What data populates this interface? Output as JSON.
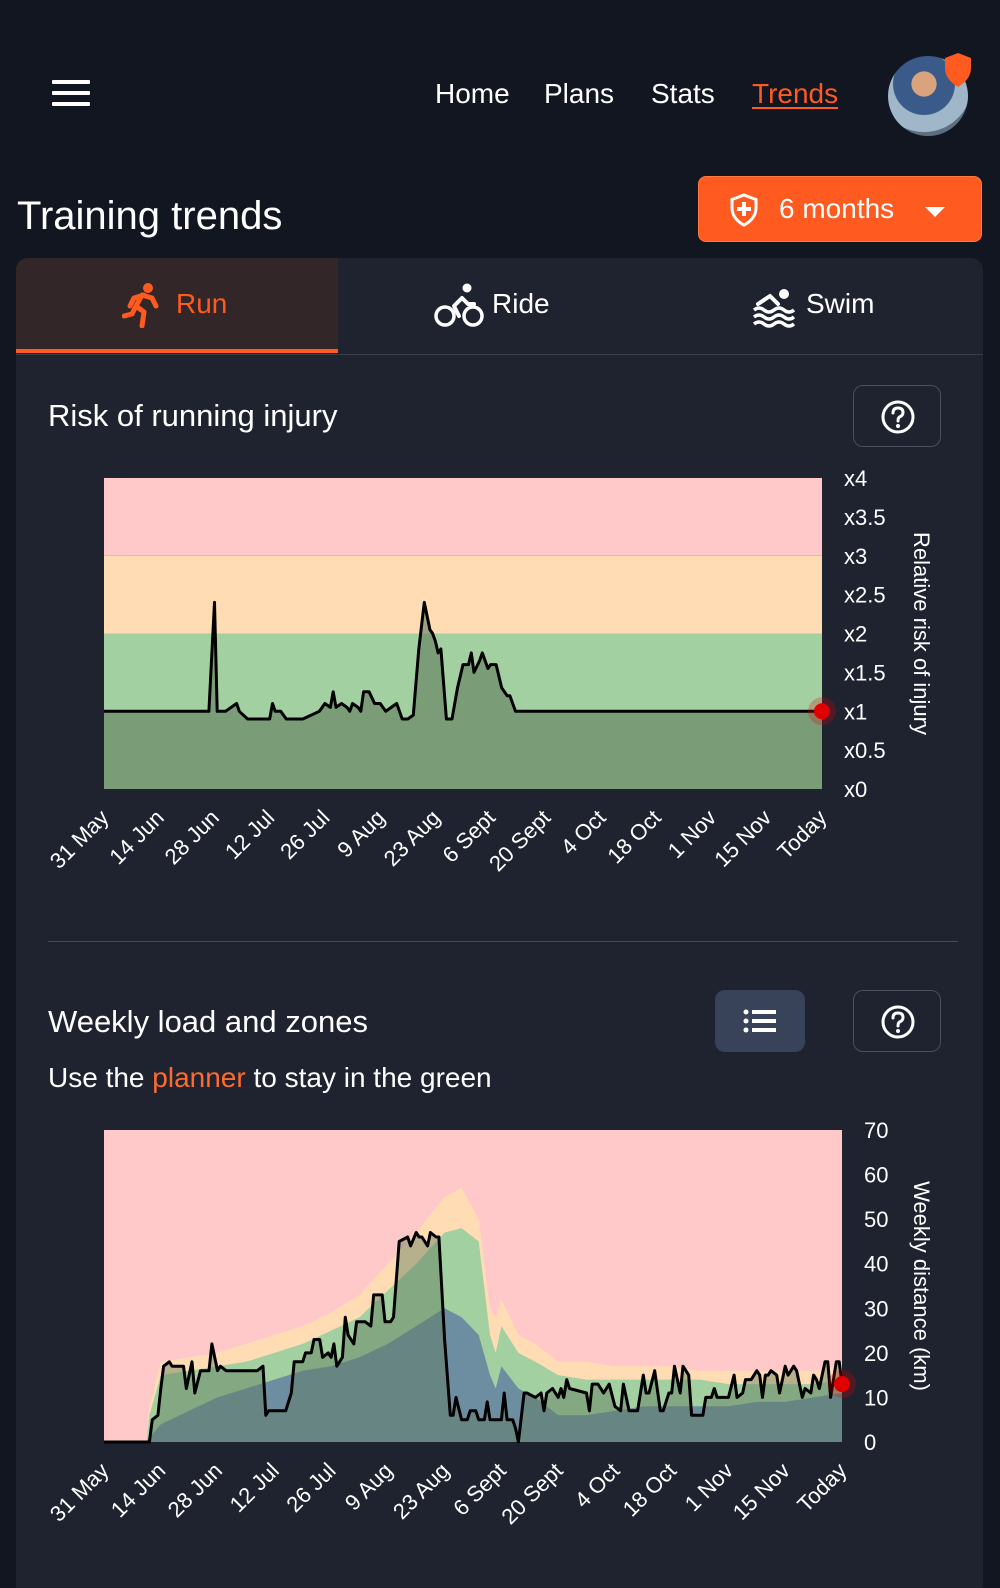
{
  "nav": {
    "home": "Home",
    "plans": "Plans",
    "stats": "Stats",
    "trends": "Trends"
  },
  "page_title": "Training trends",
  "period_selector": {
    "label": "6 months",
    "icon": "shield-plus-icon"
  },
  "tabs": [
    {
      "label": "Run",
      "icon": "run-icon",
      "active": true
    },
    {
      "label": "Ride",
      "icon": "bike-icon",
      "active": false
    },
    {
      "label": "Swim",
      "icon": "swim-icon",
      "active": false
    }
  ],
  "risk_section": {
    "title": "Risk of running injury"
  },
  "load_section": {
    "title": "Weekly load and zones",
    "subtitle_before": "Use the ",
    "subtitle_link": "planner",
    "subtitle_after": " to stay in the green"
  },
  "colors": {
    "accent": "#ff5a1f",
    "zone_red": "#ffc9c9",
    "zone_orange": "#ffdcb4",
    "zone_green": "#a3d0a1",
    "line": "#000000",
    "marker": "#e00000"
  },
  "chart_data": [
    {
      "type": "line",
      "ylabel": "Relative risk of injury",
      "ylim": [
        0,
        4
      ],
      "y_ticks": [
        "x0",
        "x0.5",
        "x1",
        "x1.5",
        "x2",
        "x2.5",
        "x3",
        "x3.5",
        "x4"
      ],
      "x_ticks": [
        "31 May",
        "14 Jun",
        "28 Jun",
        "12 Jul",
        "26 Jul",
        "9 Aug",
        "23 Aug",
        "6 Sept",
        "20 Sept",
        "4 Oct",
        "18 Oct",
        "1 Nov",
        "15 Nov",
        "Today"
      ],
      "xlim": [
        0,
        13
      ],
      "zones": [
        {
          "name": "red",
          "from": 3,
          "to": 4
        },
        {
          "name": "orange",
          "from": 2,
          "to": 3
        },
        {
          "name": "green",
          "from": 0,
          "to": 2
        }
      ],
      "series": [
        {
          "x": [
            0,
            1.9,
            2.0,
            2.05,
            2.1,
            2.2,
            2.4,
            2.45,
            2.6,
            3.0,
            3.05,
            3.1,
            3.2,
            3.3,
            3.4,
            3.6,
            3.9,
            4.0,
            4.1,
            4.15,
            4.2,
            4.3,
            4.4,
            4.45,
            4.5,
            4.6,
            4.65,
            4.7,
            4.8,
            4.9,
            5.0,
            5.1,
            5.2,
            5.3,
            5.4,
            5.5,
            5.6,
            5.7,
            5.8,
            5.9,
            5.95,
            6.0,
            6.05,
            6.1,
            6.2,
            6.3,
            6.4,
            6.5,
            6.6,
            6.65,
            6.7,
            6.8,
            6.85,
            6.95,
            7.0,
            7.1,
            7.2,
            7.3,
            7.35,
            7.45,
            7.5,
            7.55,
            7.6,
            7.75,
            7.8,
            7.85,
            7.9,
            8.0,
            8.2,
            13.0
          ],
          "y": [
            1.0,
            1.0,
            2.4,
            1.0,
            1.0,
            1.0,
            1.1,
            1.0,
            0.9,
            0.9,
            1.1,
            1.0,
            1.0,
            0.9,
            0.9,
            0.9,
            1.0,
            1.1,
            1.05,
            1.25,
            1.05,
            1.1,
            1.05,
            1.0,
            1.1,
            1.05,
            1.0,
            1.25,
            1.25,
            1.1,
            1.1,
            1.0,
            1.05,
            1.1,
            0.9,
            0.9,
            0.95,
            1.8,
            2.4,
            2.05,
            2.0,
            1.9,
            1.75,
            1.8,
            0.9,
            0.9,
            1.3,
            1.6,
            1.6,
            1.75,
            1.5,
            1.65,
            1.75,
            1.55,
            1.6,
            1.6,
            1.3,
            1.2,
            1.2,
            1.0,
            1.0,
            1.0,
            1.0,
            1.0,
            1.0,
            1.0,
            1.0,
            1.0,
            1.0,
            1.0
          ]
        }
      ],
      "today_value": 1.0
    },
    {
      "type": "area",
      "ylabel": "Weekly distance (km)",
      "ylim": [
        0,
        70
      ],
      "y_ticks": [
        "0",
        "10",
        "20",
        "30",
        "40",
        "50",
        "60",
        "70"
      ],
      "x_ticks": [
        "31 May",
        "14 Jun",
        "28 Jun",
        "12 Jul",
        "26 Jul",
        "9 Aug",
        "23 Aug",
        "6 Sept",
        "20 Sept",
        "4 Oct",
        "18 Oct",
        "1 Nov",
        "15 Nov",
        "Today"
      ],
      "xlim": [
        0,
        13
      ],
      "x": [
        0.0,
        0.75,
        0.8,
        1.0,
        1.5,
        2.0,
        2.5,
        3.0,
        3.5,
        4.0,
        4.5,
        5.0,
        5.5,
        6.0,
        6.3,
        6.6,
        6.8,
        6.9,
        7.0,
        7.3,
        7.6,
        8.0,
        8.5,
        9.0,
        9.5,
        10.0,
        10.5,
        11.0,
        11.5,
        12.0,
        12.5,
        13.0
      ],
      "series": [
        {
          "name": "red",
          "values": [
            70,
            70,
            70,
            70,
            70,
            70,
            70,
            70,
            70,
            70,
            70,
            70,
            70,
            70,
            70,
            70,
            70,
            70,
            70,
            70,
            70,
            70,
            70,
            70,
            70,
            70,
            70,
            70,
            70,
            70,
            70,
            70
          ]
        },
        {
          "name": "orange",
          "values": [
            0,
            0,
            8,
            18,
            19,
            20,
            22,
            24,
            26,
            29,
            33,
            40,
            47,
            55,
            57,
            50,
            30,
            28,
            32,
            24,
            22,
            18,
            18,
            17,
            17,
            17,
            16,
            16,
            16,
            16,
            16,
            17
          ]
        },
        {
          "name": "green",
          "values": [
            0,
            0,
            6,
            15,
            16,
            17,
            18,
            20,
            22,
            25,
            28,
            34,
            40,
            47,
            48,
            45,
            24,
            20,
            26,
            20,
            18,
            15,
            14,
            14,
            14,
            14,
            14,
            13,
            13,
            13,
            13,
            14
          ]
        },
        {
          "name": "blue",
          "values": [
            0,
            0,
            1,
            4,
            7,
            10,
            12,
            14,
            16,
            17,
            19,
            22,
            26,
            30,
            28,
            24,
            15,
            12,
            17,
            12,
            10,
            6,
            6,
            7,
            8,
            8,
            8,
            8,
            9,
            9,
            10,
            11
          ]
        }
      ],
      "line": {
        "x": [
          0.0,
          0.8,
          0.85,
          0.95,
          1.0,
          1.05,
          1.15,
          1.2,
          1.4,
          1.45,
          1.55,
          1.6,
          1.7,
          1.75,
          1.85,
          1.9,
          2.0,
          2.05,
          2.15,
          2.2,
          2.7,
          2.8,
          2.85,
          2.9,
          3.0,
          3.1,
          3.2,
          3.3,
          3.35,
          3.5,
          3.55,
          3.65,
          3.7,
          3.8,
          3.85,
          3.95,
          4.0,
          4.05,
          4.1,
          4.2,
          4.25,
          4.3,
          4.4,
          4.45,
          4.55,
          4.6,
          4.7,
          4.75,
          4.9,
          4.95,
          5.05,
          5.1,
          5.2,
          5.35,
          5.4,
          5.5,
          5.55,
          5.6,
          5.7,
          5.75,
          5.85,
          5.9,
          6.0,
          6.1,
          6.15,
          6.2,
          6.3,
          6.4,
          6.45,
          6.55,
          6.6,
          6.7,
          6.75,
          6.8,
          6.9,
          7.0,
          7.05,
          7.1,
          7.15,
          7.2,
          7.25,
          7.3,
          7.4,
          7.45,
          7.6,
          7.7,
          7.75,
          7.8,
          7.9,
          8.0,
          8.05,
          8.1,
          8.15,
          8.2,
          8.5,
          8.55,
          8.6,
          8.7,
          8.8,
          8.9,
          9.0,
          9.1,
          9.15,
          9.25,
          9.3,
          9.4,
          9.5,
          9.55,
          9.6,
          9.7,
          9.8,
          9.85,
          9.95,
          10.0,
          10.05,
          10.15,
          10.2,
          10.3,
          10.35,
          10.45,
          10.5,
          10.55,
          10.6,
          10.7,
          10.75,
          10.8,
          10.9,
          11.0,
          11.1,
          11.15,
          11.25,
          11.3,
          11.4,
          11.5,
          11.55,
          11.6,
          11.65,
          11.7,
          11.75,
          11.85,
          11.9,
          12.0,
          12.05,
          12.1,
          12.15,
          12.2,
          12.3,
          12.35,
          12.45,
          12.5,
          12.55,
          12.6,
          12.7,
          12.75,
          12.8,
          12.9,
          12.95,
          13.0
        ],
        "values": [
          0,
          0,
          5,
          6,
          12,
          17,
          18,
          17,
          17,
          12,
          18,
          11,
          16,
          16,
          16,
          22,
          16,
          17,
          16,
          16,
          16,
          17,
          6,
          7,
          7,
          7,
          7,
          11,
          18,
          18,
          20,
          20,
          23,
          23,
          19,
          20,
          19,
          22,
          17,
          19,
          28,
          24,
          22,
          27,
          27,
          27,
          26,
          33,
          33,
          27,
          27,
          28,
          45,
          46,
          44,
          47,
          46,
          46,
          44,
          47,
          46,
          46,
          23,
          6,
          6,
          10,
          5,
          5,
          7,
          7,
          5,
          5,
          9,
          5,
          5,
          5,
          11,
          5,
          5,
          5,
          3,
          0,
          11,
          11,
          10,
          11,
          7,
          11,
          12,
          10,
          12,
          10,
          14,
          12,
          11,
          7,
          13,
          13,
          11,
          13,
          8,
          7,
          13,
          7,
          7,
          7,
          15,
          11,
          11,
          16,
          7,
          7,
          11,
          11,
          17,
          11,
          17,
          15,
          6,
          6,
          6,
          6,
          10,
          10,
          12,
          10,
          10,
          10,
          15,
          10,
          11,
          14,
          14,
          16,
          15,
          10,
          15,
          15,
          16,
          15,
          11,
          17,
          15,
          16,
          17,
          16,
          10,
          12,
          11,
          15,
          14,
          12,
          18,
          18,
          10,
          18,
          18,
          13
        ]
      },
      "today_value": 13
    }
  ]
}
